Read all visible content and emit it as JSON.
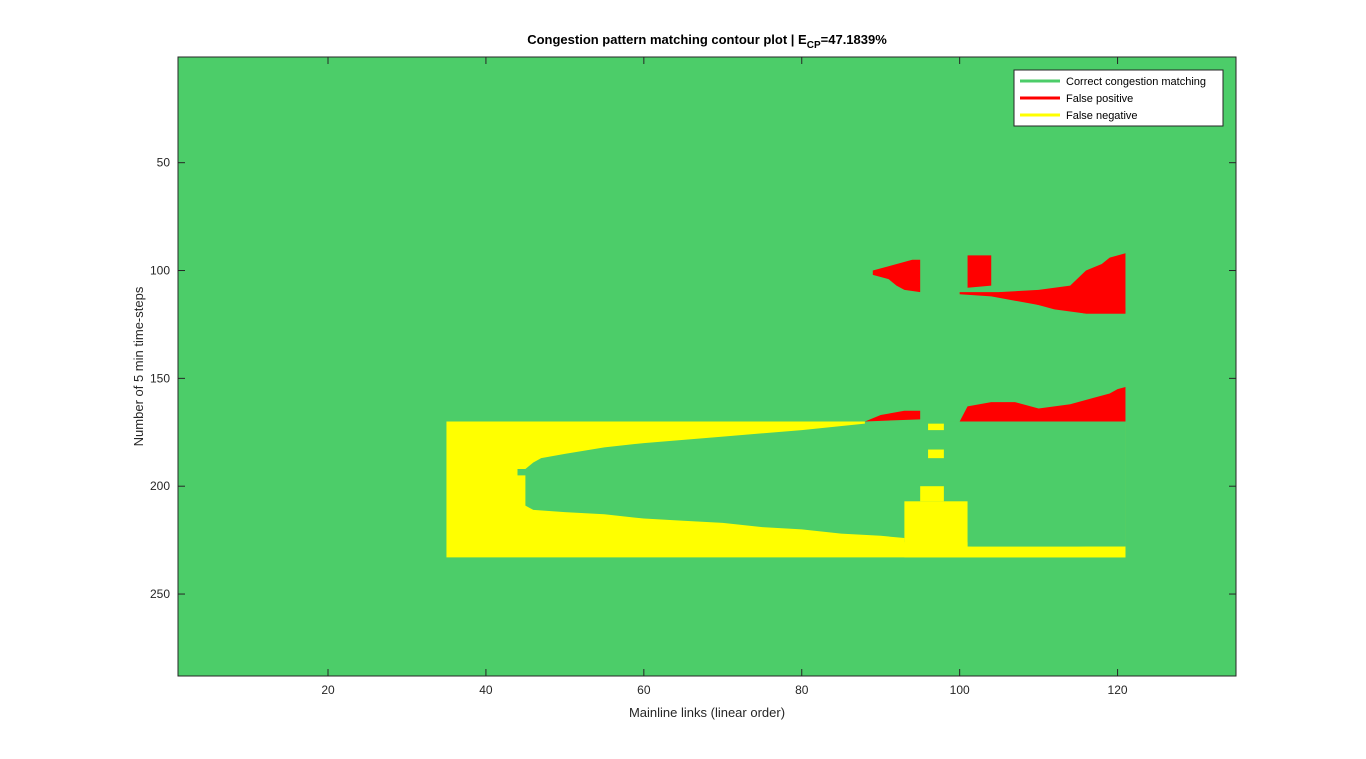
{
  "chart_data": {
    "type": "heatmap",
    "title": {
      "prefix": "Congestion pattern matching contour plot | E",
      "subscript": "CP",
      "suffix": "=47.1839%"
    },
    "xlabel": "Mainline links (linear order)",
    "ylabel": "Number of 5 min time-steps",
    "xlim": [
      1,
      135
    ],
    "ylim": [
      288,
      1
    ],
    "y_direction": "reversed (top = small)",
    "xticks": [
      20,
      40,
      60,
      80,
      100,
      120
    ],
    "yticks": [
      50,
      100,
      150,
      200,
      250
    ],
    "background_class": "Correct congestion matching",
    "colors": {
      "correct": "#4ccd69",
      "false_positive": "#ff0000",
      "false_negative": "#ffff00",
      "axis": "#262626",
      "frame": "#262626"
    },
    "legend": {
      "placement": "top-right",
      "entries": [
        {
          "label": "Correct congestion matching",
          "color": "#4ccd69"
        },
        {
          "label": "False positive",
          "color": "#ff0000"
        },
        {
          "label": "False negative",
          "color": "#ffff00"
        }
      ]
    },
    "regions": [
      {
        "class": "false_negative",
        "color": "#ffff00",
        "outer": [
          [
            35,
            170
          ],
          [
            88,
            170
          ],
          [
            88,
            174
          ],
          [
            35,
            174
          ],
          [
            35,
            232
          ],
          [
            35,
            232
          ],
          [
            121,
            232
          ],
          [
            121,
            226
          ],
          [
            98,
            226
          ],
          [
            98,
            216
          ],
          [
            98,
            200
          ],
          [
            96,
            200
          ],
          [
            96,
            216
          ],
          [
            94,
            216
          ],
          [
            94,
            227
          ],
          [
            88,
            227
          ],
          [
            80,
            225
          ],
          [
            70,
            222
          ],
          [
            60,
            219
          ],
          [
            50,
            216
          ],
          [
            46,
            214
          ],
          [
            45,
            209
          ],
          [
            45,
            196
          ],
          [
            46,
            189
          ],
          [
            50,
            187
          ],
          [
            60,
            185
          ],
          [
            70,
            182
          ],
          [
            80,
            177
          ],
          [
            88,
            174
          ],
          [
            88,
            170
          ]
        ]
      },
      {
        "class": "false_negative_rect",
        "color": "#ffff00",
        "rects": [
          {
            "x0": 35,
            "x1": 46,
            "y0": 170,
            "y1": 233
          },
          {
            "x0": 35,
            "x1": 88,
            "y0": 170,
            "y1": 174
          },
          {
            "x0": 35,
            "x1": 121,
            "y0": 226,
            "y1": 233
          }
        ]
      }
    ],
    "false_negative_boundary": {
      "top_edge": [
        [
          35,
          170
        ],
        [
          88,
          170
        ],
        [
          88,
          171
        ],
        [
          80,
          174
        ],
        [
          70,
          177
        ],
        [
          60,
          180
        ],
        [
          55,
          182
        ],
        [
          50,
          185
        ],
        [
          47,
          187
        ],
        [
          46,
          189
        ],
        [
          45,
          192
        ],
        [
          44,
          192
        ],
        [
          44,
          195
        ],
        [
          45,
          195
        ],
        [
          45,
          209
        ],
        [
          46,
          211
        ],
        [
          50,
          212
        ],
        [
          55,
          213
        ],
        [
          60,
          215
        ],
        [
          65,
          216
        ],
        [
          70,
          217
        ],
        [
          75,
          219
        ],
        [
          80,
          220
        ],
        [
          85,
          222
        ],
        [
          90,
          223
        ],
        [
          93,
          224
        ],
        [
          95,
          226
        ],
        [
          97,
          226
        ],
        [
          97,
          221
        ],
        [
          98,
          221
        ],
        [
          98,
          226
        ],
        [
          100,
          226
        ],
        [
          101,
          226
        ],
        [
          101,
          230
        ],
        [
          105,
          231
        ],
        [
          110,
          231
        ],
        [
          116,
          230
        ],
        [
          121,
          230
        ],
        [
          121,
          233
        ],
        [
          35,
          233
        ]
      ],
      "small_patches": [
        {
          "x0": 96,
          "x1": 98,
          "y0": 183,
          "y1": 187
        },
        {
          "x0": 96,
          "x1": 98,
          "y0": 171,
          "y1": 174
        },
        {
          "x0": 95,
          "x1": 98,
          "y0": 200,
          "y1": 207
        },
        {
          "x0": 93,
          "x1": 101,
          "y0": 207,
          "y1": 228
        }
      ]
    },
    "false_positive_boundary": {
      "upper_left": [
        [
          89,
          100
        ],
        [
          94,
          95
        ],
        [
          95,
          95
        ],
        [
          95,
          110
        ],
        [
          93,
          109
        ],
        [
          92,
          107
        ],
        [
          91,
          104
        ],
        [
          90,
          103
        ],
        [
          89,
          102
        ]
      ],
      "upper_mid": [
        [
          101,
          93
        ],
        [
          104,
          93
        ],
        [
          104,
          107
        ],
        [
          101,
          108
        ]
      ],
      "upper_right": [
        [
          105,
          110
        ],
        [
          110,
          109
        ],
        [
          114,
          107
        ],
        [
          116,
          100
        ],
        [
          118,
          97
        ],
        [
          119,
          94
        ],
        [
          121,
          92
        ],
        [
          121,
          120
        ],
        [
          116,
          120
        ],
        [
          112,
          118
        ],
        [
          108,
          114
        ],
        [
          106,
          112
        ]
      ],
      "lower_left": [
        [
          88,
          170
        ],
        [
          90,
          167
        ],
        [
          93,
          165
        ],
        [
          95,
          165
        ],
        [
          95,
          169
        ],
        [
          88,
          170
        ]
      ],
      "lower_right": [
        [
          100,
          170
        ],
        [
          101,
          163
        ],
        [
          104,
          161
        ],
        [
          107,
          161
        ],
        [
          110,
          164
        ],
        [
          114,
          162
        ],
        [
          117,
          159
        ],
        [
          119,
          157
        ],
        [
          120,
          155
        ],
        [
          121,
          154
        ],
        [
          121,
          170
        ]
      ]
    }
  }
}
